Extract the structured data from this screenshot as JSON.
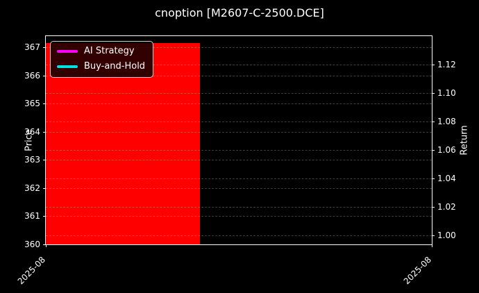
{
  "chart_data": {
    "type": "area",
    "title": "cnoption [M2607-C-2500.DCE]",
    "background": "#000000",
    "grid": {
      "on": true,
      "style": "dashed"
    },
    "left_axis": {
      "label": "Price",
      "tick_labels": [
        "367",
        "366",
        "365",
        "364",
        "363",
        "362",
        "361",
        "360"
      ],
      "ylim": [
        360,
        367.4
      ]
    },
    "right_axis": {
      "label": "Return",
      "tick_labels": [
        "1.12",
        "1.10",
        "1.08",
        "1.06",
        "1.04",
        "1.02",
        "1.00"
      ],
      "ylim": [
        0.9935,
        1.1403
      ]
    },
    "x_axis": {
      "ticks": [
        {
          "label": "2025-08",
          "frac": 0
        },
        {
          "label": "2025-08",
          "frac": 1
        }
      ]
    },
    "series": [
      {
        "name": "AI Strategy",
        "color": "#ff00ff"
      },
      {
        "name": "Buy-and-Hold",
        "color": "#00e0e0"
      }
    ],
    "fill_region": {
      "color": "#ff0000",
      "axis": "left",
      "x_start_frac": 0,
      "x_end_frac": 0.4,
      "y_bottom": 360,
      "y_top": 367.15
    },
    "legend_position": "upper-left"
  }
}
